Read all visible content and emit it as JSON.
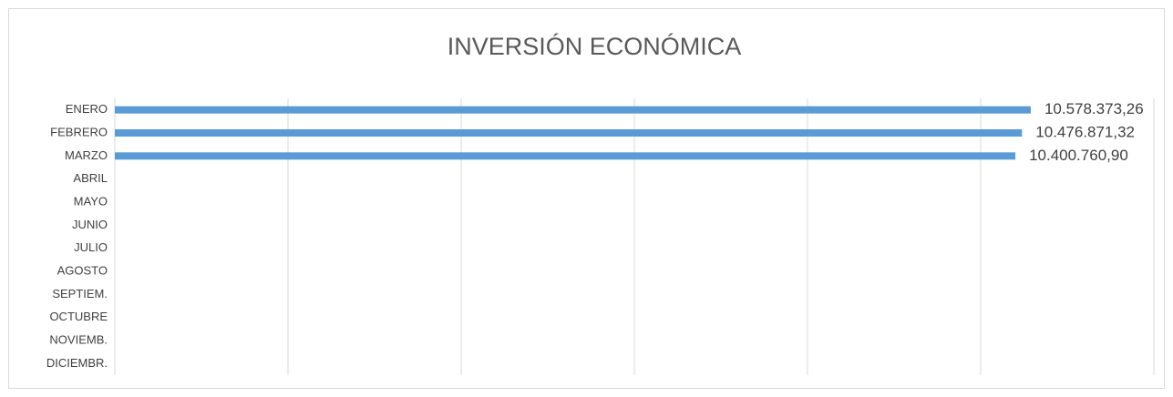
{
  "chart_data": {
    "type": "bar",
    "orientation": "horizontal",
    "title": "INVERSIÓN ECONÓMICA",
    "categories": [
      "ENERO",
      "FEBRERO",
      "MARZO",
      "ABRIL",
      "MAYO",
      "JUNIO",
      "JULIO",
      "AGOSTO",
      "SEPTIEM.",
      "OCTUBRE",
      "NOVIEMB.",
      "DICIEMBR."
    ],
    "values": [
      10578373.26,
      10476871.32,
      10400760.9,
      null,
      null,
      null,
      null,
      null,
      null,
      null,
      null,
      null
    ],
    "value_labels": [
      "10.578.373,26",
      "10.476.871,32",
      "10.400.760,90",
      null,
      null,
      null,
      null,
      null,
      null,
      null,
      null,
      null
    ],
    "color": "#5b9bd5",
    "xlim": [
      0,
      12000000
    ],
    "xticks": [
      0,
      2000000,
      4000000,
      6000000,
      8000000,
      10000000,
      12000000
    ],
    "grid": true
  }
}
